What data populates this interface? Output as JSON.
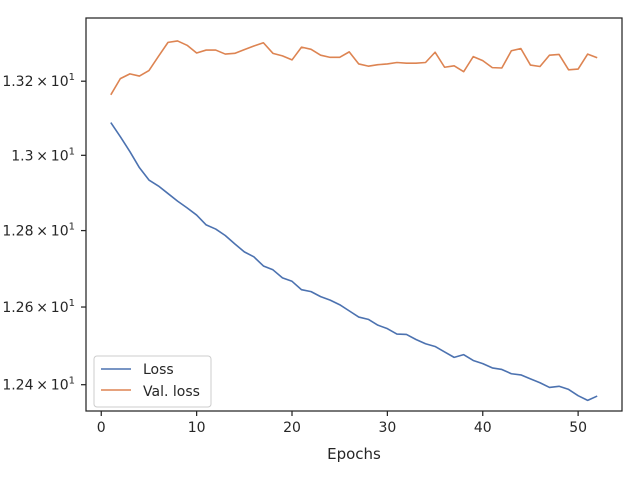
{
  "chart_data": {
    "type": "line",
    "title": "",
    "xlabel": "Epochs",
    "ylabel": "",
    "yscale": "log",
    "xlim": [
      -1.6,
      54.6
    ],
    "ylim": [
      12.333,
      13.373
    ],
    "grid": false,
    "legend_position": "lower-left",
    "x_ticks": [
      {
        "value": 0,
        "label": "0"
      },
      {
        "value": 10,
        "label": "10"
      },
      {
        "value": 20,
        "label": "20"
      },
      {
        "value": 30,
        "label": "30"
      },
      {
        "value": 40,
        "label": "40"
      },
      {
        "value": 50,
        "label": "50"
      }
    ],
    "y_ticks": [
      {
        "value": 12.4,
        "mantissa": "1.24",
        "base": "10",
        "exponent": "1"
      },
      {
        "value": 12.6,
        "mantissa": "1.26",
        "base": "10",
        "exponent": "1"
      },
      {
        "value": 12.8,
        "mantissa": "1.28",
        "base": "10",
        "exponent": "1"
      },
      {
        "value": 13.0,
        "mantissa": "1.3",
        "base": "10",
        "exponent": "1"
      },
      {
        "value": 13.2,
        "mantissa": "1.32",
        "base": "10",
        "exponent": "1"
      }
    ],
    "x": [
      1,
      2,
      3,
      4,
      5,
      6,
      7,
      8,
      9,
      10,
      11,
      12,
      13,
      14,
      15,
      16,
      17,
      18,
      19,
      20,
      21,
      22,
      23,
      24,
      25,
      26,
      27,
      28,
      29,
      30,
      31,
      32,
      33,
      34,
      35,
      36,
      37,
      38,
      39,
      40,
      41,
      42,
      43,
      44,
      45,
      46,
      47,
      48,
      49,
      50,
      51,
      52
    ],
    "series": [
      {
        "name": "Loss",
        "color": "#4c72b0",
        "values": [
          13.088,
          13.05,
          13.01,
          12.967,
          12.934,
          12.918,
          12.898,
          12.878,
          12.86,
          12.841,
          12.815,
          12.804,
          12.787,
          12.765,
          12.744,
          12.731,
          12.707,
          12.697,
          12.676,
          12.667,
          12.645,
          12.64,
          12.627,
          12.618,
          12.606,
          12.59,
          12.574,
          12.568,
          12.553,
          12.544,
          12.53,
          12.529,
          12.516,
          12.505,
          12.498,
          12.484,
          12.47,
          12.477,
          12.462,
          12.454,
          12.443,
          12.439,
          12.428,
          12.425,
          12.415,
          12.405,
          12.393,
          12.396,
          12.388,
          12.372,
          12.36,
          12.371
        ]
      },
      {
        "name": "Val. loss",
        "color": "#dd8452",
        "values": [
          13.163,
          13.207,
          13.22,
          13.214,
          13.229,
          13.268,
          13.306,
          13.31,
          13.298,
          13.277,
          13.285,
          13.285,
          13.274,
          13.276,
          13.286,
          13.296,
          13.305,
          13.276,
          13.269,
          13.258,
          13.293,
          13.287,
          13.271,
          13.265,
          13.265,
          13.28,
          13.247,
          13.241,
          13.245,
          13.247,
          13.251,
          13.249,
          13.249,
          13.251,
          13.279,
          13.238,
          13.242,
          13.226,
          13.267,
          13.256,
          13.237,
          13.236,
          13.283,
          13.289,
          13.244,
          13.24,
          13.271,
          13.273,
          13.231,
          13.233,
          13.274,
          13.264
        ]
      }
    ]
  }
}
